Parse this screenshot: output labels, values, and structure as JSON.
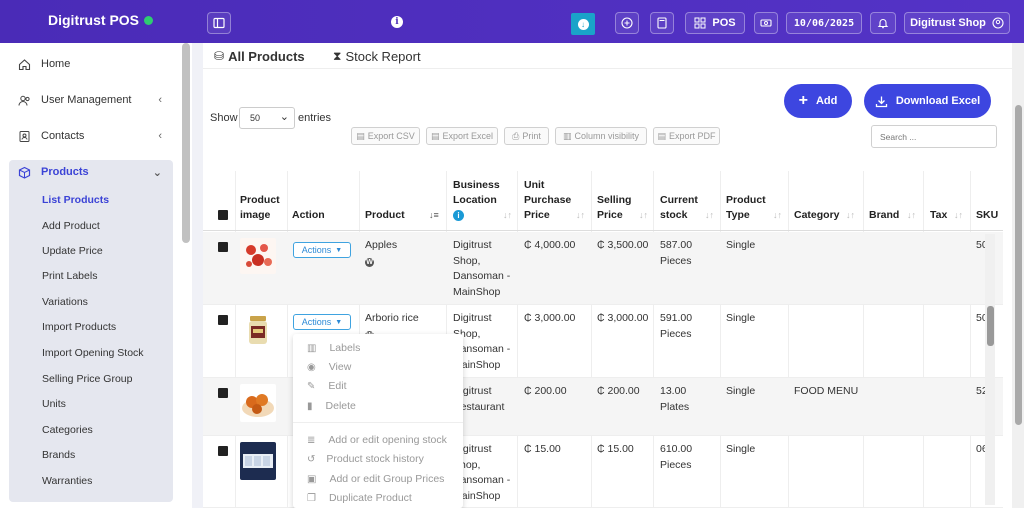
{
  "app": {
    "title": "Digitrust POS"
  },
  "topbar": {
    "pos_label": "POS",
    "date": "10/06/2025",
    "shop_label": "Digitrust Shop"
  },
  "sidebar": {
    "items": [
      {
        "label": "Home",
        "icon": "home-icon"
      },
      {
        "label": "User Management",
        "icon": "users-icon"
      },
      {
        "label": "Contacts",
        "icon": "contacts-icon"
      },
      {
        "label": "Products",
        "icon": "cube-icon"
      }
    ],
    "products_sub": [
      "List Products",
      "Add Product",
      "Update Price",
      "Print Labels",
      "Variations",
      "Import Products",
      "Import Opening Stock",
      "Selling Price Group",
      "Units",
      "Categories",
      "Brands",
      "Warranties"
    ]
  },
  "tabs": {
    "all_products": "All Products",
    "stock_report": "Stock Report"
  },
  "toolbar": {
    "add_label": "Add",
    "download_excel_label": "Download Excel",
    "show_label": "Show",
    "entries_value": "50",
    "entries_label": "entries",
    "search_placeholder": "Search ...",
    "export_csv": "Export CSV",
    "export_excel": "Export Excel",
    "print": "Print",
    "column_visibility": "Column visibility",
    "export_pdf": "Export PDF"
  },
  "table": {
    "headers": {
      "product_image": [
        "Product",
        "image"
      ],
      "action": "Action",
      "product": "Product",
      "business_location": [
        "Business",
        "Location"
      ],
      "unit_purchase_price": [
        "Unit",
        "Purchase",
        "Price"
      ],
      "selling_price": [
        "Selling",
        "Price"
      ],
      "current_stock": [
        "Current",
        "stock"
      ],
      "product_type": [
        "Product",
        "Type"
      ],
      "category": "Category",
      "brand": "Brand",
      "tax": "Tax",
      "sku": "SKU"
    },
    "actions_label": "Actions",
    "rows": [
      {
        "product": "Apples",
        "location": [
          "Digitrust",
          "Shop,",
          "Dansoman -",
          "MainShop"
        ],
        "purchase": "₵ 4,000.00",
        "selling": "₵ 3,500.00",
        "stock": [
          "587.00",
          "Pieces"
        ],
        "type": "Single",
        "category": "",
        "sku": "50"
      },
      {
        "product": "Arborio rice",
        "location": [
          "Digitrust",
          "Shop,",
          "Dansoman -",
          "MainShop"
        ],
        "purchase": "₵ 3,000.00",
        "selling": "₵ 3,000.00",
        "stock": [
          "591.00",
          "Pieces"
        ],
        "type": "Single",
        "category": "",
        "sku": "50"
      },
      {
        "product": "",
        "location": [
          "Digitrust",
          "Restaurant"
        ],
        "purchase": "₵ 200.00",
        "selling": "₵ 200.00",
        "stock": [
          "13.00",
          "Plates"
        ],
        "type": "Single",
        "category": "FOOD MENU",
        "sku": "52"
      },
      {
        "product": "",
        "location": [
          "Digitrust",
          "Shop,",
          "Dansoman -",
          "MainShop"
        ],
        "purchase": "₵ 15.00",
        "selling": "₵ 15.00",
        "stock": [
          "610.00",
          "Pieces"
        ],
        "type": "Single",
        "category": "",
        "sku": "06"
      }
    ]
  },
  "dropdown": {
    "items": [
      "Labels",
      "View",
      "Edit",
      "Delete",
      "Add or edit opening stock",
      "Product stock history",
      "Add or edit Group Prices",
      "Duplicate Product"
    ]
  }
}
